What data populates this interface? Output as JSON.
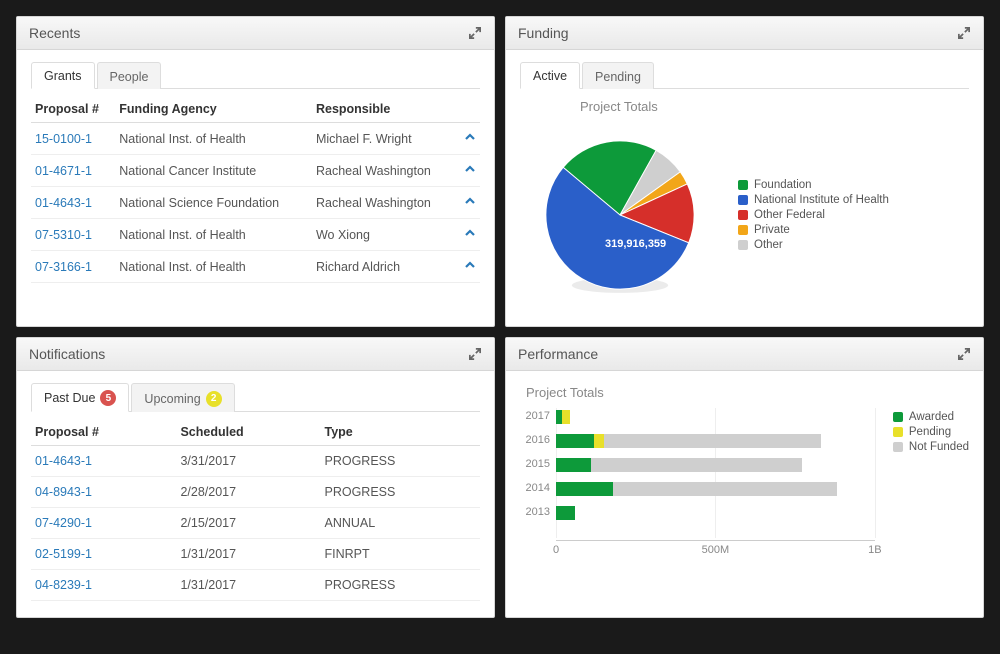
{
  "panels": {
    "recents": {
      "title": "Recents",
      "tabs": [
        {
          "label": "Grants",
          "active": true
        },
        {
          "label": "People",
          "active": false
        }
      ],
      "columns": [
        "Proposal #",
        "Funding Agency",
        "Responsible"
      ],
      "rows": [
        {
          "proposal": "15-0100-1",
          "agency": "National Inst. of Health",
          "responsible": "Michael F. Wright"
        },
        {
          "proposal": "01-4671-1",
          "agency": "National Cancer Institute",
          "responsible": "Racheal Washington"
        },
        {
          "proposal": "01-4643-1",
          "agency": "National Science Foundation",
          "responsible": "Racheal Washington"
        },
        {
          "proposal": "07-5310-1",
          "agency": "National Inst. of Health",
          "responsible": "Wo Xiong"
        },
        {
          "proposal": "07-3166-1",
          "agency": "National Inst. of Health",
          "responsible": "Richard Aldrich"
        }
      ]
    },
    "funding": {
      "title": "Funding",
      "tabs": [
        {
          "label": "Active",
          "active": true
        },
        {
          "label": "Pending",
          "active": false
        }
      ],
      "chart": {
        "type": "pie",
        "title": "Project Totals",
        "slice_label": "319,916,359",
        "colors": {
          "foundation": "#0d9a3a",
          "nih": "#2a5fc9",
          "other_federal": "#d62f2a",
          "private": "#f2a619",
          "other": "#cfcfcf"
        },
        "slices_pct": {
          "foundation": 22,
          "nih": 55,
          "other_federal": 13,
          "private": 3,
          "other": 7
        },
        "legend": [
          {
            "label": "Foundation",
            "key": "foundation"
          },
          {
            "label": "National Institute of Health",
            "key": "nih"
          },
          {
            "label": "Other Federal",
            "key": "other_federal"
          },
          {
            "label": "Private",
            "key": "private"
          },
          {
            "label": "Other",
            "key": "other"
          }
        ]
      }
    },
    "notifications": {
      "title": "Notifications",
      "tabs": [
        {
          "label": "Past Due",
          "active": true,
          "badge": "5",
          "badge_color": "#d9534f"
        },
        {
          "label": "Upcoming",
          "active": false,
          "badge": "2",
          "badge_color": "#e8e02a"
        }
      ],
      "columns": [
        "Proposal #",
        "Scheduled",
        "Type"
      ],
      "rows": [
        {
          "proposal": "01-4643-1",
          "scheduled": "3/31/2017",
          "type": "PROGRESS"
        },
        {
          "proposal": "04-8943-1",
          "scheduled": "2/28/2017",
          "type": "PROGRESS"
        },
        {
          "proposal": "07-4290-1",
          "scheduled": "2/15/2017",
          "type": "ANNUAL"
        },
        {
          "proposal": "02-5199-1",
          "scheduled": "1/31/2017",
          "type": "FINRPT"
        },
        {
          "proposal": "04-8239-1",
          "scheduled": "1/31/2017",
          "type": "PROGRESS"
        }
      ]
    },
    "performance": {
      "title": "Performance",
      "chart": {
        "type": "bar-stacked-horizontal",
        "title": "Project Totals",
        "x_axis": {
          "min": 0,
          "max": 1000000000,
          "ticks": [
            0,
            500000000,
            1000000000
          ],
          "tick_labels": [
            "0",
            "500M",
            "1B"
          ]
        },
        "categories": [
          "2017",
          "2016",
          "2015",
          "2014",
          "2013"
        ],
        "series": [
          {
            "key": "awarded",
            "label": "Awarded",
            "color": "#0d9a3a"
          },
          {
            "key": "pending",
            "label": "Pending",
            "color": "#e8e02a"
          },
          {
            "key": "notfunded",
            "label": "Not Funded",
            "color": "#cfcfcf"
          }
        ],
        "values": {
          "2017": {
            "awarded": 20000000,
            "pending": 25000000,
            "notfunded": 0
          },
          "2016": {
            "awarded": 120000000,
            "pending": 30000000,
            "notfunded": 680000000
          },
          "2015": {
            "awarded": 110000000,
            "pending": 0,
            "notfunded": 660000000
          },
          "2014": {
            "awarded": 180000000,
            "pending": 0,
            "notfunded": 700000000
          },
          "2013": {
            "awarded": 60000000,
            "pending": 0,
            "notfunded": 0
          }
        },
        "background_color": "#ffffff",
        "grid_color": "#eeeeee"
      }
    }
  }
}
